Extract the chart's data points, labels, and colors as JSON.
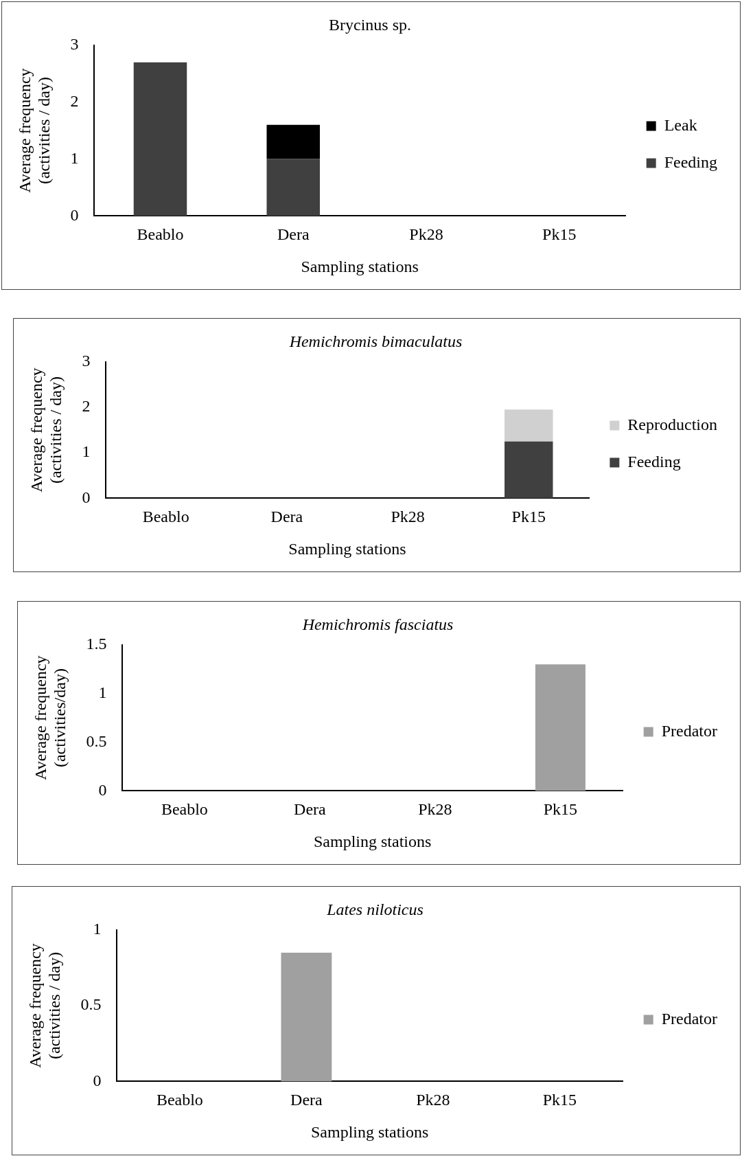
{
  "chart_data": [
    {
      "type": "bar",
      "title": "Brycinus sp.",
      "xlabel": "Sampling stations",
      "ylabel": "Average frequency (activities / day)",
      "categories": [
        "Beablo",
        "Dera",
        "Pk28",
        "Pk15"
      ],
      "stacked": true,
      "series": [
        {
          "name": "Feeding",
          "color": "#404040",
          "values": [
            2.7,
            1.0,
            0,
            0
          ]
        },
        {
          "name": "Leak",
          "color": "#000000",
          "values": [
            0,
            0.6,
            0,
            0
          ]
        }
      ],
      "ylim": [
        0,
        3
      ],
      "yticks": [
        0,
        1,
        2,
        3
      ],
      "grid": false,
      "legend": "right"
    },
    {
      "type": "bar",
      "title": "Hemichromis bimaculatus",
      "xlabel": "Sampling stations",
      "ylabel": "Average frequency (activities / day)",
      "categories": [
        "Beablo",
        "Dera",
        "Pk28",
        "Pk15"
      ],
      "stacked": true,
      "series": [
        {
          "name": "Feeding",
          "color": "#404040",
          "values": [
            0,
            0,
            0,
            1.25
          ]
        },
        {
          "name": "Reproduction",
          "color": "#d0d0d0",
          "values": [
            0,
            0,
            0,
            0.7
          ]
        }
      ],
      "ylim": [
        0,
        3
      ],
      "yticks": [
        0,
        1,
        2,
        3
      ],
      "grid": false,
      "legend": "right"
    },
    {
      "type": "bar",
      "title": "Hemichromis fasciatus",
      "xlabel": "Sampling stations",
      "ylabel": "Average frequency (activities/day)",
      "categories": [
        "Beablo",
        "Dera",
        "Pk28",
        "Pk15"
      ],
      "series": [
        {
          "name": "Predator",
          "color": "#a0a0a0",
          "values": [
            0,
            0,
            0,
            1.3
          ]
        }
      ],
      "ylim": [
        0,
        1.5
      ],
      "yticks": [
        0,
        0.5,
        1,
        1.5
      ],
      "grid": false,
      "legend": "right"
    },
    {
      "type": "bar",
      "title": "Lates niloticus",
      "xlabel": "Sampling stations",
      "ylabel": "Average frequency (activities / day)",
      "categories": [
        "Beablo",
        "Dera",
        "Pk28",
        "Pk15"
      ],
      "series": [
        {
          "name": "Predator",
          "color": "#a0a0a0",
          "values": [
            0,
            0.85,
            0,
            0
          ]
        }
      ],
      "ylim": [
        0,
        1
      ],
      "yticks": [
        0,
        0.5,
        1
      ],
      "grid": false,
      "legend": "right"
    }
  ]
}
